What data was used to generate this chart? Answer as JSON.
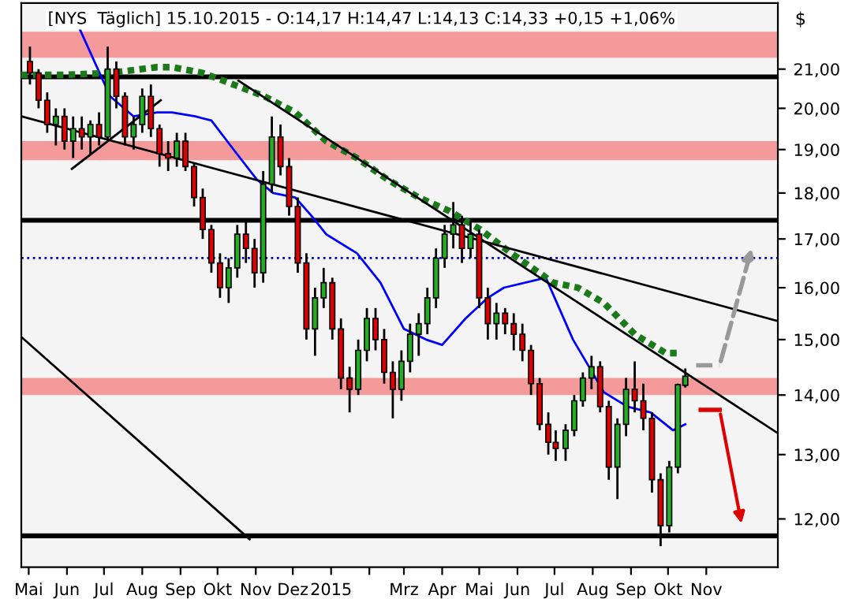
{
  "chart_data": {
    "type": "candlestick",
    "title": "[NYS  Täglich] 15.10.2015 - O:14,17 H:14,47 L:14,13 C:14,33 +0,15 +1,06%",
    "ylabel": "$",
    "log": true,
    "x": [
      "2014-05-02",
      "2014-05-09",
      "2014-05-16",
      "2014-05-23",
      "2014-05-30",
      "2014-06-06",
      "2014-06-13",
      "2014-06-20",
      "2014-06-27",
      "2014-07-04",
      "2014-07-11",
      "2014-07-18",
      "2014-07-25",
      "2014-08-01",
      "2014-08-08",
      "2014-08-15",
      "2014-08-22",
      "2014-08-29",
      "2014-09-05",
      "2014-09-12",
      "2014-09-19",
      "2014-09-26",
      "2014-10-03",
      "2014-10-10",
      "2014-10-17",
      "2014-10-24",
      "2014-10-31",
      "2014-11-07",
      "2014-11-14",
      "2014-11-21",
      "2014-11-28",
      "2014-12-05",
      "2014-12-12",
      "2014-12-19",
      "2014-12-26",
      "2015-01-02",
      "2015-01-09",
      "2015-01-16",
      "2015-01-23",
      "2015-01-30",
      "2015-02-06",
      "2015-02-13",
      "2015-02-20",
      "2015-02-27",
      "2015-03-06",
      "2015-03-13",
      "2015-03-20",
      "2015-03-27",
      "2015-04-03",
      "2015-04-10",
      "2015-04-17",
      "2015-04-24",
      "2015-05-01",
      "2015-05-08",
      "2015-05-15",
      "2015-05-22",
      "2015-05-29",
      "2015-06-05",
      "2015-06-12",
      "2015-06-19",
      "2015-06-26",
      "2015-07-02",
      "2015-07-10",
      "2015-07-17",
      "2015-07-24",
      "2015-07-31",
      "2015-08-07",
      "2015-08-14",
      "2015-08-21",
      "2015-08-28",
      "2015-09-04",
      "2015-09-11",
      "2015-09-18",
      "2015-09-25",
      "2015-10-02",
      "2015-10-09",
      "2015-10-15"
    ],
    "ohlc": [
      [
        21.2,
        21.6,
        20.6,
        20.9
      ],
      [
        20.9,
        21.0,
        20.0,
        20.2
      ],
      [
        20.2,
        20.4,
        19.4,
        19.6
      ],
      [
        19.6,
        20.0,
        19.1,
        19.8
      ],
      [
        19.8,
        20.0,
        19.0,
        19.2
      ],
      [
        19.2,
        19.8,
        18.8,
        19.5
      ],
      [
        19.5,
        19.8,
        19.0,
        19.3
      ],
      [
        19.3,
        19.7,
        18.9,
        19.6
      ],
      [
        19.6,
        19.9,
        19.1,
        19.3
      ],
      [
        19.3,
        21.6,
        19.2,
        21.0
      ],
      [
        21.0,
        21.2,
        20.0,
        20.3
      ],
      [
        20.3,
        20.4,
        19.1,
        19.3
      ],
      [
        19.3,
        19.8,
        19.0,
        19.6
      ],
      [
        19.6,
        20.5,
        19.4,
        20.3
      ],
      [
        20.3,
        20.6,
        19.3,
        19.5
      ],
      [
        19.5,
        19.6,
        18.6,
        18.9
      ],
      [
        18.9,
        19.2,
        18.5,
        18.8
      ],
      [
        18.8,
        19.4,
        18.6,
        19.2
      ],
      [
        19.2,
        19.4,
        18.5,
        18.6
      ],
      [
        18.6,
        18.7,
        17.7,
        17.9
      ],
      [
        17.9,
        18.1,
        17.0,
        17.2
      ],
      [
        17.2,
        17.3,
        16.3,
        16.5
      ],
      [
        16.5,
        16.7,
        15.8,
        16.0
      ],
      [
        16.0,
        16.6,
        15.7,
        16.4
      ],
      [
        16.4,
        17.3,
        16.2,
        17.1
      ],
      [
        17.1,
        17.4,
        16.5,
        16.8
      ],
      [
        16.8,
        17.0,
        16.0,
        16.3
      ],
      [
        16.3,
        18.5,
        16.1,
        18.2
      ],
      [
        18.2,
        19.8,
        18.0,
        19.3
      ],
      [
        19.3,
        19.6,
        18.4,
        18.6
      ],
      [
        18.6,
        18.8,
        17.5,
        17.7
      ],
      [
        17.7,
        17.9,
        16.3,
        16.5
      ],
      [
        16.5,
        16.7,
        15.0,
        15.2
      ],
      [
        15.2,
        16.0,
        14.7,
        15.8
      ],
      [
        15.8,
        16.4,
        15.6,
        16.1
      ],
      [
        16.1,
        16.2,
        15.0,
        15.2
      ],
      [
        15.2,
        15.4,
        14.1,
        14.3
      ],
      [
        14.3,
        14.5,
        13.7,
        14.1
      ],
      [
        14.1,
        15.0,
        14.0,
        14.8
      ],
      [
        14.8,
        15.6,
        14.6,
        15.4
      ],
      [
        15.4,
        15.6,
        14.8,
        15.0
      ],
      [
        15.0,
        15.2,
        14.2,
        14.4
      ],
      [
        14.4,
        14.6,
        13.6,
        14.1
      ],
      [
        14.1,
        14.8,
        13.9,
        14.6
      ],
      [
        14.6,
        15.3,
        14.4,
        15.1
      ],
      [
        15.1,
        15.5,
        14.7,
        15.3
      ],
      [
        15.3,
        16.0,
        15.1,
        15.8
      ],
      [
        15.8,
        16.8,
        15.6,
        16.6
      ],
      [
        16.6,
        17.3,
        16.4,
        17.1
      ],
      [
        17.1,
        17.8,
        16.8,
        17.3
      ],
      [
        17.3,
        17.5,
        16.5,
        16.8
      ],
      [
        16.8,
        17.4,
        16.6,
        17.1
      ],
      [
        17.1,
        17.2,
        15.6,
        15.8
      ],
      [
        15.8,
        16.0,
        15.0,
        15.3
      ],
      [
        15.3,
        15.7,
        15.0,
        15.5
      ],
      [
        15.5,
        15.6,
        15.1,
        15.3
      ],
      [
        15.3,
        15.5,
        14.8,
        15.1
      ],
      [
        15.1,
        15.3,
        14.6,
        14.8
      ],
      [
        14.8,
        14.9,
        14.0,
        14.2
      ],
      [
        14.2,
        14.3,
        13.4,
        13.5
      ],
      [
        13.5,
        13.7,
        13.0,
        13.2
      ],
      [
        13.2,
        13.4,
        12.9,
        13.1
      ],
      [
        13.1,
        13.5,
        12.9,
        13.4
      ],
      [
        13.4,
        14.0,
        13.3,
        13.9
      ],
      [
        13.9,
        14.4,
        13.8,
        14.3
      ],
      [
        14.3,
        14.7,
        14.1,
        14.5
      ],
      [
        14.5,
        14.6,
        13.7,
        13.8
      ],
      [
        13.8,
        13.9,
        12.6,
        12.8
      ],
      [
        12.8,
        13.6,
        12.3,
        13.5
      ],
      [
        13.5,
        14.3,
        13.3,
        14.1
      ],
      [
        14.1,
        14.6,
        13.7,
        13.9
      ],
      [
        13.9,
        14.2,
        13.4,
        13.6
      ],
      [
        13.6,
        13.7,
        12.4,
        12.6
      ],
      [
        12.6,
        12.7,
        11.6,
        11.9
      ],
      [
        11.9,
        12.9,
        11.8,
        12.8
      ],
      [
        12.8,
        14.2,
        12.7,
        14.18
      ],
      [
        14.17,
        14.47,
        14.13,
        14.33
      ]
    ],
    "colors": [
      "#e00000",
      "#e00000",
      "#e00000",
      "#22b022",
      "#e00000",
      "#22b022",
      "#e00000",
      "#22b022",
      "#e00000",
      "#22b022",
      "#e00000",
      "#e00000",
      "#22b022",
      "#22b022",
      "#e00000",
      "#e00000",
      "#e00000",
      "#22b022",
      "#e00000",
      "#e00000",
      "#e00000",
      "#e00000",
      "#e00000",
      "#22b022",
      "#22b022",
      "#e00000",
      "#e00000",
      "#22b022",
      "#22b022",
      "#e00000",
      "#e00000",
      "#e00000",
      "#e00000",
      "#22b022",
      "#22b022",
      "#e00000",
      "#e00000",
      "#e00000",
      "#22b022",
      "#22b022",
      "#e00000",
      "#e00000",
      "#e00000",
      "#22b022",
      "#22b022",
      "#22b022",
      "#22b022",
      "#22b022",
      "#22b022",
      "#22b022",
      "#e00000",
      "#22b022",
      "#e00000",
      "#e00000",
      "#22b022",
      "#e00000",
      "#e00000",
      "#e00000",
      "#e00000",
      "#e00000",
      "#e00000",
      "#e00000",
      "#22b022",
      "#22b022",
      "#22b022",
      "#22b022",
      "#e00000",
      "#e00000",
      "#22b022",
      "#22b022",
      "#e00000",
      "#e00000",
      "#e00000",
      "#e00000",
      "#22b022",
      "#22b022",
      "#22b022"
    ],
    "series": [
      {
        "type": "line",
        "color": "#0000ff",
        "line_style": "solid",
        "x": [
          "2014-06-11",
          "2014-07-06",
          "2014-07-25",
          "2014-08-13",
          "2014-08-25",
          "2014-09-13",
          "2014-09-26",
          "2014-10-14",
          "2014-11-02",
          "2014-11-15",
          "2014-12-03",
          "2014-12-16",
          "2014-12-28",
          "2015-01-22",
          "2015-02-10",
          "2015-03-01",
          "2015-03-19",
          "2015-04-01",
          "2015-04-20",
          "2015-05-08",
          "2015-05-21",
          "2015-06-24",
          "2015-07-16",
          "2015-07-29",
          "2015-08-10",
          "2015-08-29",
          "2015-09-17",
          "2015-10-05",
          "2015-10-15"
        ],
        "values": [
          22.1,
          20.3,
          19.8,
          19.9,
          19.9,
          19.8,
          19.7,
          19.0,
          18.3,
          18.0,
          17.9,
          17.5,
          17.1,
          16.7,
          16.1,
          15.2,
          15.0,
          14.9,
          15.4,
          15.8,
          16.0,
          16.2,
          15.0,
          14.5,
          14.05,
          13.8,
          13.7,
          13.4,
          13.5
        ]
      },
      {
        "type": "line",
        "color": "#1a7a1a",
        "line_style": "dashed",
        "x": [
          "2014-04-25",
          "2014-05-30",
          "2014-07-06",
          "2014-08-13",
          "2014-08-25",
          "2014-09-19",
          "2014-10-14",
          "2014-11-08",
          "2014-12-03",
          "2014-12-28",
          "2015-01-22",
          "2015-02-16",
          "2015-03-13",
          "2015-04-07",
          "2015-05-02",
          "2015-05-27",
          "2015-06-30",
          "2015-07-20",
          "2015-08-10",
          "2015-09-04",
          "2015-09-29",
          "2015-10-12"
        ],
        "values": [
          20.85,
          20.85,
          20.9,
          21.05,
          21.05,
          20.9,
          20.6,
          20.3,
          19.9,
          19.2,
          18.8,
          18.3,
          17.9,
          17.6,
          17.2,
          16.7,
          16.1,
          16.0,
          15.7,
          15.1,
          14.75,
          14.75
        ]
      },
      {
        "type": "line",
        "color": "#000000",
        "line_style": "solid",
        "x": [
          "2014-04-25",
          "2015-12-29"
        ],
        "values": [
          19.8,
          15.35
        ]
      },
      {
        "type": "line",
        "color": "#000000",
        "line_style": "solid",
        "x": [
          "2014-10-18",
          "2015-12-29"
        ],
        "values": [
          20.7,
          13.35
        ]
      },
      {
        "type": "line",
        "color": "#000000",
        "line_style": "solid",
        "x": [
          "2014-04-25",
          "2014-10-27"
        ],
        "values": [
          15.05,
          11.7
        ]
      },
      {
        "type": "line",
        "color": "#000000",
        "line_style": "solid",
        "x": [
          "2014-06-05",
          "2014-08-16"
        ],
        "values": [
          18.55,
          20.2
        ]
      }
    ],
    "ref_lines": [
      {
        "axis": "y",
        "value": 20.8,
        "color": "#000000",
        "line_style": "solid"
      },
      {
        "axis": "y",
        "value": 17.4,
        "color": "#000000",
        "line_style": "solid"
      },
      {
        "axis": "y",
        "value": 11.75,
        "color": "#000000",
        "line_style": "solid"
      },
      {
        "axis": "y",
        "value": 16.6,
        "color": "#0000cc",
        "line_style": "dotted"
      }
    ],
    "bands": [
      {
        "axis": "y",
        "from": 21.3,
        "to": 22.0,
        "color": "#f59a9a"
      },
      {
        "axis": "y",
        "from": 18.75,
        "to": 19.2,
        "color": "#f59a9a"
      },
      {
        "axis": "y",
        "from": 14.0,
        "to": 14.3,
        "color": "#f59a9a"
      }
    ],
    "xlim": [
      "2014-04-25",
      "2015-12-29"
    ],
    "ylim": [
      11.3,
      22.8
    ],
    "xticks": [
      {
        "value": "2014-05-01",
        "label": "Mai"
      },
      {
        "value": "2014-06-01",
        "label": "Jun"
      },
      {
        "value": "2014-07-01",
        "label": "Jul"
      },
      {
        "value": "2014-08-01",
        "label": "Aug"
      },
      {
        "value": "2014-09-01",
        "label": "Sep"
      },
      {
        "value": "2014-10-01",
        "label": "Okt"
      },
      {
        "value": "2014-11-01",
        "label": "Nov"
      },
      {
        "value": "2014-12-01",
        "label": "Dez"
      },
      {
        "value": "2015-01-01",
        "label": "2015"
      },
      {
        "value": "2015-02-01",
        "label": null
      },
      {
        "value": "2015-03-01",
        "label": "Mrz"
      },
      {
        "value": "2015-04-01",
        "label": "Apr"
      },
      {
        "value": "2015-05-01",
        "label": "Mai"
      },
      {
        "value": "2015-06-01",
        "label": "Jun"
      },
      {
        "value": "2015-07-01",
        "label": "Jul"
      },
      {
        "value": "2015-08-01",
        "label": "Aug"
      },
      {
        "value": "2015-09-01",
        "label": "Sep"
      },
      {
        "value": "2015-10-01",
        "label": "Okt"
      },
      {
        "value": "2015-11-01",
        "label": "Nov"
      }
    ],
    "yticks": [
      {
        "value": 12,
        "label": "12,00"
      },
      {
        "value": 13,
        "label": "13,00"
      },
      {
        "value": 14,
        "label": "14,00"
      },
      {
        "value": 15,
        "label": "15,00"
      },
      {
        "value": 16,
        "label": "16,00"
      },
      {
        "value": 17,
        "label": "17,00"
      },
      {
        "value": 18,
        "label": "18,00"
      },
      {
        "value": 19,
        "label": "19,00"
      },
      {
        "value": 20,
        "label": "20,00"
      },
      {
        "value": 21,
        "label": "21,00"
      }
    ]
  }
}
